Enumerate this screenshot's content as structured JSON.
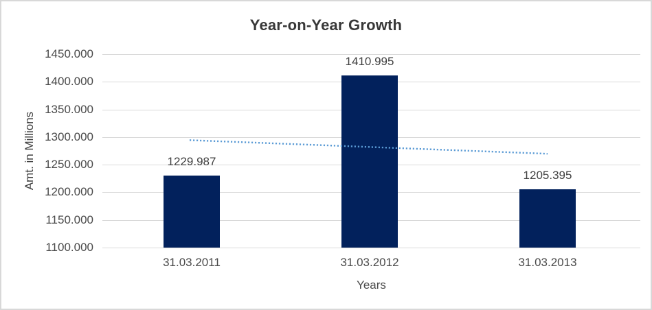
{
  "chart_data": {
    "type": "bar",
    "title": "Year-on-Year Growth",
    "xlabel": "Years",
    "ylabel": "Amt. in Millions",
    "categories": [
      "31.03.2011",
      "31.03.2012",
      "31.03.2013"
    ],
    "values": [
      1229.987,
      1410.995,
      1205.395
    ],
    "value_labels": [
      "1229.987",
      "1410.995",
      "1205.395"
    ],
    "yticks": [
      "1450.000",
      "1400.000",
      "1350.000",
      "1300.000",
      "1250.000",
      "1200.000",
      "1150.000",
      "1100.000"
    ],
    "ymin": 1100,
    "ymax": 1450,
    "ytick_step": 50,
    "grid": true,
    "legend": "none",
    "bar_color": "#02215C",
    "gridline_color": "#d9d9d9",
    "trendline": {
      "type": "linear",
      "style": "dotted",
      "color": "#5B9BD5",
      "start_value": 1294.4,
      "end_value": 1269.8
    }
  }
}
